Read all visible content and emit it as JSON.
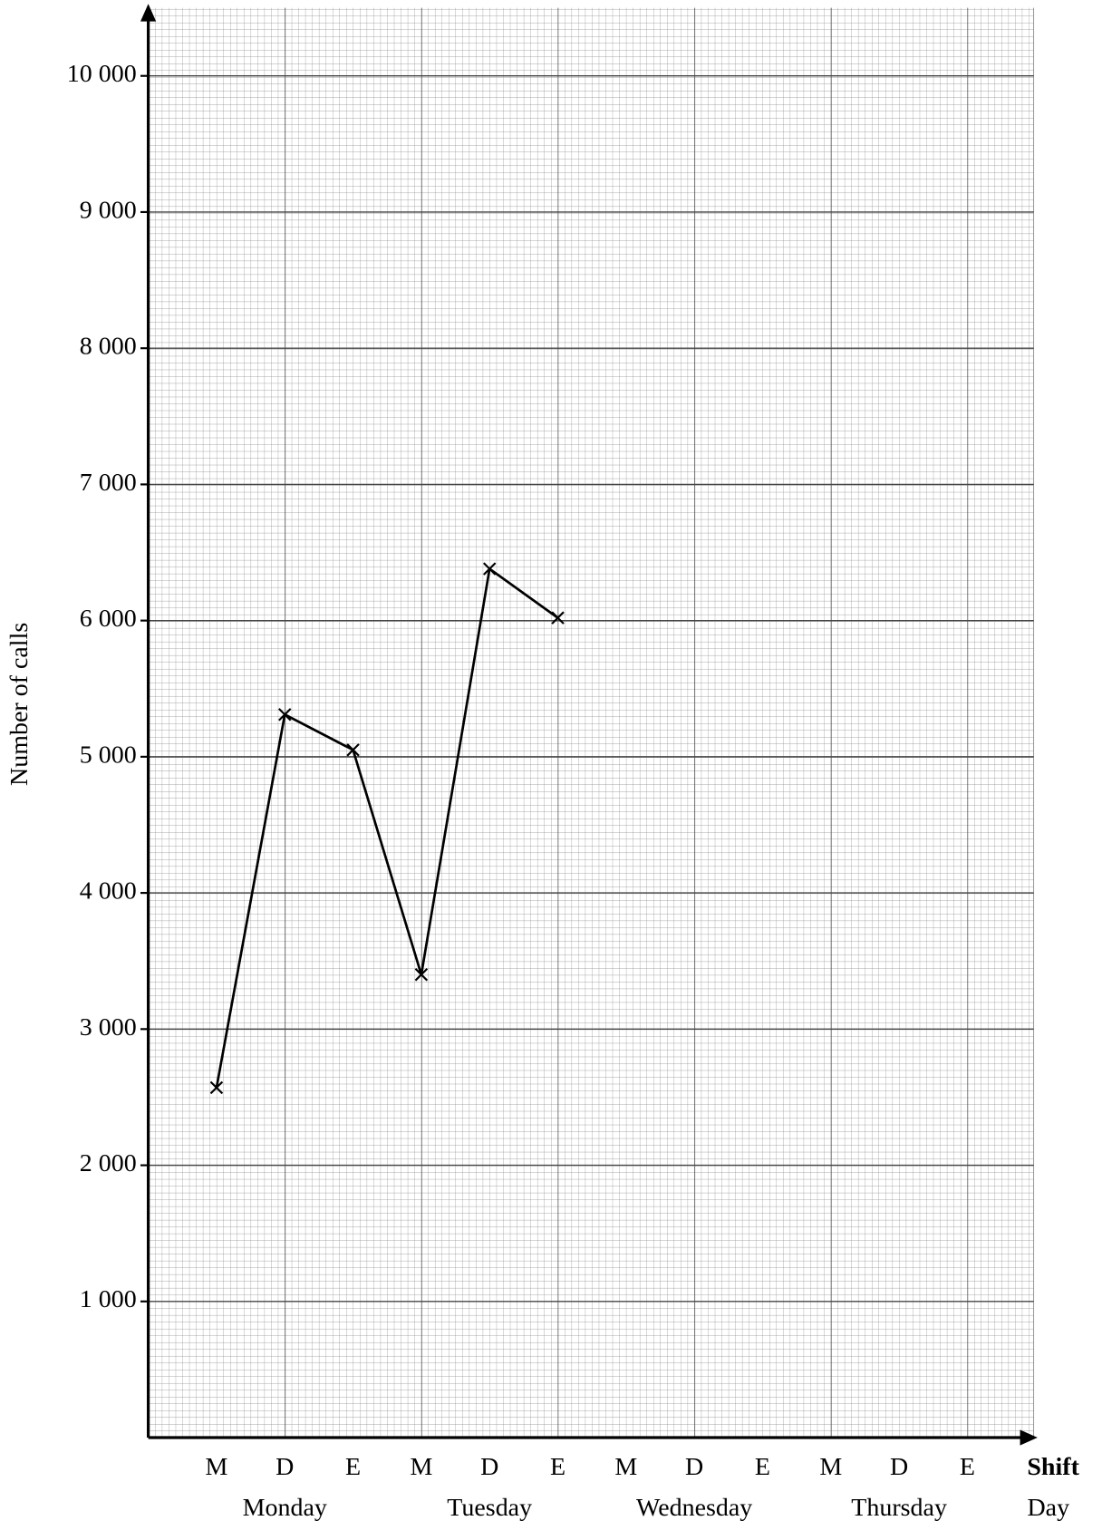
{
  "chart_data": {
    "type": "line",
    "y_axis_label": "Number of calls",
    "x_axis_label": "Shift",
    "x_group_axis_label": "Day",
    "categories": [
      "M",
      "D",
      "E",
      "M",
      "D",
      "E",
      "M",
      "D",
      "E",
      "M",
      "D",
      "E"
    ],
    "x_groups": [
      "Monday",
      "Tuesday",
      "Wednesday",
      "Thursday"
    ],
    "values": [
      2570,
      5310,
      5050,
      3400,
      6380,
      6020,
      null,
      null,
      null,
      null,
      null,
      null
    ],
    "color": "#000000",
    "marker": "x",
    "ylim": [
      0,
      10500
    ],
    "yticks": [
      {
        "value": 1000,
        "label": "1 000"
      },
      {
        "value": 2000,
        "label": "2 000"
      },
      {
        "value": 3000,
        "label": "3 000"
      },
      {
        "value": 4000,
        "label": "4 000"
      },
      {
        "value": 5000,
        "label": "5 000"
      },
      {
        "value": 6000,
        "label": "6 000"
      },
      {
        "value": 7000,
        "label": "7 000"
      },
      {
        "value": 8000,
        "label": "8 000"
      },
      {
        "value": 9000,
        "label": "9 000"
      },
      {
        "value": 10000,
        "label": "10 000"
      }
    ],
    "grid": true
  }
}
